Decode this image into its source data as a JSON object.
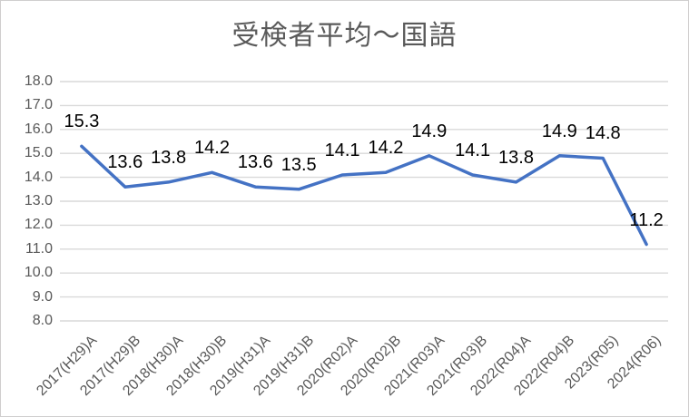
{
  "chart_data": {
    "type": "line",
    "title": "受検者平均〜国語",
    "categories": [
      "2017(H29)A",
      "2017(H29)B",
      "2018(H30)A",
      "2018(H30)B",
      "2019(H31)A",
      "2019(H31)B",
      "2020(R02)A",
      "2020(R02)B",
      "2021(R03)A",
      "2021(R03)B",
      "2022(R04)A",
      "2022(R04)B",
      "2023(R05)",
      "2024(R06)"
    ],
    "values": [
      15.3,
      13.6,
      13.8,
      14.2,
      13.6,
      13.5,
      14.1,
      14.2,
      14.9,
      14.1,
      13.8,
      14.9,
      14.8,
      11.2
    ],
    "ylim": [
      8.0,
      18.0
    ],
    "ytick_step": 1.0,
    "ytick_labels": [
      "8.0",
      "9.0",
      "10.0",
      "11.0",
      "12.0",
      "13.0",
      "14.0",
      "15.0",
      "16.0",
      "17.0",
      "18.0"
    ],
    "xlabel": "",
    "ylabel": "",
    "grid": true,
    "legend": "none",
    "data_labels_position": "above",
    "colors": {
      "series": "#4472C4",
      "gridline": "#D9D9D9",
      "axis_text": "#595959",
      "title": "#595959",
      "data_label": "#000000",
      "chart_border": "#D0CECE",
      "background": "#FFFFFF"
    }
  }
}
